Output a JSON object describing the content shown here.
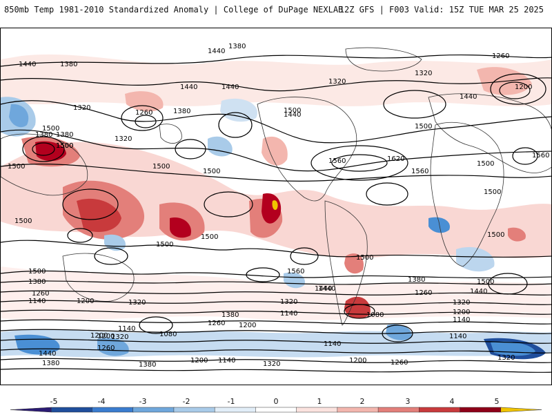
{
  "header": {
    "left": "850mb Temp 1981-2010 Standardized Anomaly | College of DuPage NEXLAB",
    "right": "12Z GFS | F003 Valid: 15Z TUE MAR 25 2025"
  },
  "colors": {
    "neg_deep": "#1f4e9c",
    "neg_mid": "#4a8fd4",
    "neg_light": "#bcd6ee",
    "pos_light": "#f6c9c4",
    "pos_mid": "#e37f7a",
    "pos_deep": "#b3001e",
    "pos_extreme": "#f0c400",
    "contour": "#000000",
    "land_outline": "#333333"
  },
  "contour_labels": [
    {
      "text": "1380"
    },
    {
      "text": "1440"
    },
    {
      "text": "1380"
    },
    {
      "text": "1260"
    },
    {
      "text": "1440"
    },
    {
      "text": "1320"
    },
    {
      "text": "1320"
    },
    {
      "text": "1200"
    },
    {
      "text": "1440"
    },
    {
      "text": "1440"
    },
    {
      "text": "1320"
    },
    {
      "text": "1260"
    },
    {
      "text": "1380"
    },
    {
      "text": "1500"
    },
    {
      "text": "1440"
    },
    {
      "text": "1380"
    },
    {
      "text": "1500"
    },
    {
      "text": "1500"
    },
    {
      "text": "1380"
    },
    {
      "text": "1320"
    },
    {
      "text": "1500"
    },
    {
      "text": "1440"
    },
    {
      "text": "1500"
    },
    {
      "text": "1500"
    },
    {
      "text": "1560"
    },
    {
      "text": "1620"
    },
    {
      "text": "1560"
    },
    {
      "text": "1500"
    },
    {
      "text": "1560"
    },
    {
      "text": "1500"
    },
    {
      "text": "1500"
    },
    {
      "text": "1500"
    },
    {
      "text": "1500"
    },
    {
      "text": "1500"
    },
    {
      "text": "1500"
    },
    {
      "text": "1500"
    },
    {
      "text": "1500"
    },
    {
      "text": "1560"
    },
    {
      "text": "1500"
    },
    {
      "text": "1440"
    },
    {
      "text": "1380"
    },
    {
      "text": "1500"
    },
    {
      "text": "1440"
    },
    {
      "text": "1380"
    },
    {
      "text": "1260"
    },
    {
      "text": "1440"
    },
    {
      "text": "1320"
    },
    {
      "text": "1260"
    },
    {
      "text": "1140"
    },
    {
      "text": "1200"
    },
    {
      "text": "1320"
    },
    {
      "text": "1320"
    },
    {
      "text": "1200"
    },
    {
      "text": "1140"
    },
    {
      "text": "1380"
    },
    {
      "text": "1260"
    },
    {
      "text": "1200"
    },
    {
      "text": "1140"
    },
    {
      "text": "1080"
    },
    {
      "text": "1200"
    },
    {
      "text": "1140"
    },
    {
      "text": "1080"
    },
    {
      "text": "1140"
    },
    {
      "text": "1200"
    },
    {
      "text": "1320"
    },
    {
      "text": "1260"
    },
    {
      "text": "1140"
    },
    {
      "text": "1440"
    },
    {
      "text": "1380"
    },
    {
      "text": "1380"
    },
    {
      "text": "1200"
    },
    {
      "text": "1140"
    },
    {
      "text": "1320"
    },
    {
      "text": "1200"
    },
    {
      "text": "1260"
    },
    {
      "text": "1320"
    }
  ],
  "colorbar": {
    "ticks": [
      "-5",
      "-4",
      "-3",
      "-2",
      "-1",
      "0",
      "1",
      "2",
      "3",
      "4",
      "5"
    ],
    "colors": [
      "#2b1b74",
      "#1f4e9c",
      "#3a7ccf",
      "#6fa7dc",
      "#a9cbe9",
      "#e2eef8",
      "#ffffff",
      "#fbe3df",
      "#f3b6ae",
      "#e37f7a",
      "#c83a3c",
      "#8e0018",
      "#f0c400"
    ]
  }
}
